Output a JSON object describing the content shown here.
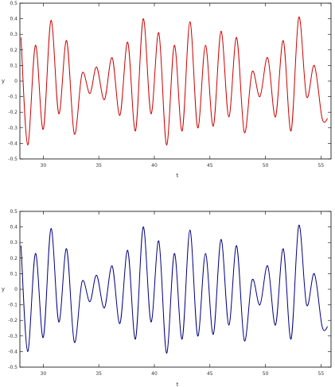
{
  "chart_data": [
    {
      "type": "line",
      "title": "",
      "xlabel": "t",
      "ylabel": "y",
      "xlim": [
        27.9,
        55.9
      ],
      "ylim": [
        -0.5,
        0.5
      ],
      "grid": false,
      "x_ticks": [
        30,
        35,
        40,
        45,
        50,
        55
      ],
      "y_ticks": [
        -0.5,
        -0.4,
        -0.3,
        -0.2,
        -0.1,
        0,
        0.1,
        0.2,
        0.3,
        0.4,
        0.5
      ],
      "x_tick_labels": [
        "30",
        "35",
        "40",
        "45",
        "50",
        "55"
      ],
      "y_tick_labels": [
        "-0.5",
        "-0.4",
        "-0.3",
        "-0.2",
        "-0.1",
        "0",
        "0.1",
        "0.2",
        "0.3",
        "0.4",
        "0.5"
      ],
      "series": [
        {
          "color": "#cc0000",
          "x": [
            28.0,
            28.6,
            29.3,
            30.0,
            30.7,
            31.4,
            32.1,
            32.8,
            33.5,
            34.2,
            34.8,
            35.5,
            36.2,
            36.9,
            37.6,
            38.3,
            39.0,
            39.7,
            40.4,
            41.1,
            41.8,
            42.5,
            43.2,
            43.9,
            44.6,
            45.3,
            46.0,
            46.7,
            47.4,
            48.1,
            48.8,
            49.5,
            50.2,
            50.9,
            51.6,
            52.3,
            53.0,
            53.7,
            54.4,
            55.1,
            55.6
          ],
          "y": [
            0.28,
            -0.41,
            0.23,
            -0.31,
            0.39,
            -0.21,
            0.26,
            -0.34,
            0.05,
            -0.08,
            0.09,
            -0.12,
            0.15,
            -0.22,
            0.25,
            -0.32,
            0.4,
            -0.21,
            0.31,
            -0.41,
            0.23,
            -0.32,
            0.38,
            -0.3,
            0.23,
            -0.29,
            0.32,
            -0.23,
            0.28,
            -0.33,
            0.06,
            -0.1,
            0.15,
            -0.23,
            0.26,
            -0.32,
            0.41,
            -0.1,
            0.1,
            -0.24,
            -0.24
          ]
        }
      ]
    },
    {
      "type": "line",
      "title": "",
      "xlabel": "t",
      "ylabel": "y",
      "xlim": [
        27.9,
        55.9
      ],
      "ylim": [
        -0.5,
        0.5
      ],
      "grid": false,
      "x_ticks": [
        30,
        35,
        40,
        45,
        50,
        55
      ],
      "y_ticks": [
        -0.5,
        -0.4,
        -0.3,
        -0.2,
        -0.1,
        0,
        0.1,
        0.2,
        0.3,
        0.4,
        0.5
      ],
      "x_tick_labels": [
        "30",
        "35",
        "40",
        "45",
        "50",
        "55"
      ],
      "y_tick_labels": [
        "-0.5",
        "-0.4",
        "-0.3",
        "-0.2",
        "-0.1",
        "0",
        "0.1",
        "0.2",
        "0.3",
        "0.4",
        "0.5"
      ],
      "series": [
        {
          "color": "#000080",
          "x": [
            28.0,
            28.6,
            29.3,
            30.0,
            30.7,
            31.4,
            32.1,
            32.8,
            33.5,
            34.2,
            34.8,
            35.5,
            36.2,
            36.9,
            37.6,
            38.3,
            39.0,
            39.7,
            40.4,
            41.1,
            41.8,
            42.5,
            43.2,
            43.9,
            44.6,
            45.3,
            46.0,
            46.7,
            47.4,
            48.1,
            48.8,
            49.5,
            50.2,
            50.9,
            51.6,
            52.3,
            53.0,
            53.7,
            54.4,
            55.1,
            55.6
          ],
          "y": [
            0.28,
            -0.4,
            0.23,
            -0.31,
            0.39,
            -0.21,
            0.26,
            -0.34,
            0.05,
            -0.08,
            0.09,
            -0.12,
            0.15,
            -0.22,
            0.25,
            -0.32,
            0.4,
            -0.21,
            0.31,
            -0.41,
            0.23,
            -0.32,
            0.38,
            -0.3,
            0.23,
            -0.29,
            0.32,
            -0.23,
            0.28,
            -0.33,
            0.06,
            -0.1,
            0.15,
            -0.23,
            0.26,
            -0.32,
            0.41,
            -0.1,
            0.1,
            -0.24,
            -0.24
          ]
        }
      ]
    }
  ]
}
